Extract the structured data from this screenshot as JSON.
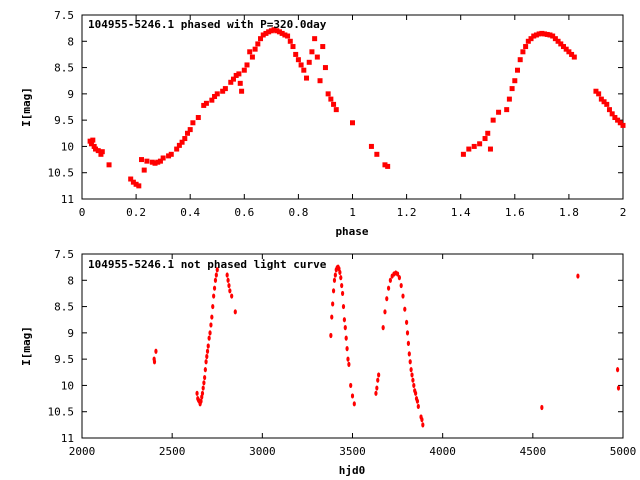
{
  "chart_data": [
    {
      "type": "scatter",
      "title": "104955-5246.1 phased with P=320.0day",
      "xlabel": "phase",
      "ylabel": "I[mag]",
      "xlim": [
        0,
        2
      ],
      "ylim": [
        7.5,
        11
      ],
      "y_inverted": true,
      "grid": false,
      "legend": "none",
      "x_ticks": [
        "0",
        "0.2",
        "0.4",
        "0.6",
        "0.8",
        "1",
        "1.2",
        "1.4",
        "1.6",
        "1.8",
        "2"
      ],
      "x_tick_values": [
        0,
        0.2,
        0.4,
        0.6,
        0.8,
        1.0,
        1.2,
        1.4,
        1.6,
        1.8,
        2.0
      ],
      "y_ticks": [
        "7.5",
        "8",
        "8.5",
        "9",
        "9.5",
        "10",
        "10.5",
        "11"
      ],
      "y_tick_values": [
        7.5,
        8,
        8.5,
        9,
        9.5,
        10,
        10.5,
        11
      ],
      "color": "#ff0000",
      "points": [
        [
          0.03,
          9.9
        ],
        [
          0.035,
          9.95
        ],
        [
          0.04,
          9.88
        ],
        [
          0.045,
          10.0
        ],
        [
          0.05,
          10.05
        ],
        [
          0.06,
          10.08
        ],
        [
          0.07,
          10.15
        ],
        [
          0.075,
          10.1
        ],
        [
          0.1,
          10.35
        ],
        [
          0.18,
          10.62
        ],
        [
          0.19,
          10.68
        ],
        [
          0.2,
          10.72
        ],
        [
          0.21,
          10.75
        ],
        [
          0.22,
          10.25
        ],
        [
          0.23,
          10.45
        ],
        [
          0.24,
          10.28
        ],
        [
          0.26,
          10.3
        ],
        [
          0.27,
          10.32
        ],
        [
          0.28,
          10.3
        ],
        [
          0.29,
          10.28
        ],
        [
          0.3,
          10.22
        ],
        [
          0.32,
          10.18
        ],
        [
          0.33,
          10.15
        ],
        [
          0.35,
          10.05
        ],
        [
          0.36,
          9.98
        ],
        [
          0.37,
          9.92
        ],
        [
          0.38,
          9.85
        ],
        [
          0.39,
          9.75
        ],
        [
          0.4,
          9.68
        ],
        [
          0.41,
          9.55
        ],
        [
          0.43,
          9.45
        ],
        [
          0.45,
          9.22
        ],
        [
          0.46,
          9.18
        ],
        [
          0.48,
          9.12
        ],
        [
          0.49,
          9.05
        ],
        [
          0.5,
          9.0
        ],
        [
          0.52,
          8.95
        ],
        [
          0.53,
          8.9
        ],
        [
          0.55,
          8.78
        ],
        [
          0.56,
          8.72
        ],
        [
          0.57,
          8.65
        ],
        [
          0.58,
          8.62
        ],
        [
          0.585,
          8.8
        ],
        [
          0.59,
          8.95
        ],
        [
          0.6,
          8.55
        ],
        [
          0.61,
          8.45
        ],
        [
          0.62,
          8.2
        ],
        [
          0.63,
          8.3
        ],
        [
          0.64,
          8.15
        ],
        [
          0.65,
          8.05
        ],
        [
          0.66,
          7.95
        ],
        [
          0.67,
          7.88
        ],
        [
          0.68,
          7.85
        ],
        [
          0.69,
          7.82
        ],
        [
          0.7,
          7.8
        ],
        [
          0.71,
          7.78
        ],
        [
          0.72,
          7.8
        ],
        [
          0.73,
          7.82
        ],
        [
          0.74,
          7.85
        ],
        [
          0.75,
          7.88
        ],
        [
          0.76,
          7.9
        ],
        [
          0.77,
          8.0
        ],
        [
          0.78,
          8.1
        ],
        [
          0.79,
          8.25
        ],
        [
          0.8,
          8.35
        ],
        [
          0.81,
          8.45
        ],
        [
          0.82,
          8.55
        ],
        [
          0.83,
          8.7
        ],
        [
          0.84,
          8.4
        ],
        [
          0.85,
          8.2
        ],
        [
          0.86,
          7.95
        ],
        [
          0.87,
          8.3
        ],
        [
          0.88,
          8.75
        ],
        [
          0.89,
          8.1
        ],
        [
          0.9,
          8.5
        ],
        [
          0.91,
          9.0
        ],
        [
          0.92,
          9.1
        ],
        [
          0.93,
          9.2
        ],
        [
          0.94,
          9.3
        ],
        [
          1.0,
          9.55
        ],
        [
          1.07,
          10.0
        ],
        [
          1.09,
          10.15
        ],
        [
          1.12,
          10.35
        ],
        [
          1.13,
          10.38
        ],
        [
          1.41,
          10.15
        ],
        [
          1.43,
          10.05
        ],
        [
          1.45,
          10.0
        ],
        [
          1.47,
          9.95
        ],
        [
          1.49,
          9.85
        ],
        [
          1.5,
          9.75
        ],
        [
          1.51,
          10.05
        ],
        [
          1.52,
          9.5
        ],
        [
          1.54,
          9.35
        ],
        [
          1.57,
          9.3
        ],
        [
          1.58,
          9.1
        ],
        [
          1.59,
          8.9
        ],
        [
          1.6,
          8.75
        ],
        [
          1.61,
          8.55
        ],
        [
          1.62,
          8.35
        ],
        [
          1.63,
          8.2
        ],
        [
          1.64,
          8.1
        ],
        [
          1.65,
          8.0
        ],
        [
          1.66,
          7.95
        ],
        [
          1.67,
          7.9
        ],
        [
          1.68,
          7.88
        ],
        [
          1.69,
          7.86
        ],
        [
          1.7,
          7.85
        ],
        [
          1.71,
          7.86
        ],
        [
          1.72,
          7.87
        ],
        [
          1.73,
          7.88
        ],
        [
          1.74,
          7.9
        ],
        [
          1.75,
          7.95
        ],
        [
          1.76,
          8.0
        ],
        [
          1.77,
          8.05
        ],
        [
          1.78,
          8.1
        ],
        [
          1.79,
          8.15
        ],
        [
          1.8,
          8.2
        ],
        [
          1.81,
          8.25
        ],
        [
          1.82,
          8.3
        ],
        [
          1.9,
          8.95
        ],
        [
          1.91,
          9.0
        ],
        [
          1.92,
          9.1
        ],
        [
          1.93,
          9.15
        ],
        [
          1.94,
          9.2
        ],
        [
          1.95,
          9.3
        ],
        [
          1.96,
          9.38
        ],
        [
          1.97,
          9.45
        ],
        [
          1.98,
          9.5
        ],
        [
          1.99,
          9.55
        ],
        [
          2.0,
          9.6
        ]
      ]
    },
    {
      "type": "scatter",
      "title": "104955-5246.1 not phased light curve",
      "xlabel": "hjd0",
      "ylabel": "I[mag]",
      "xlim": [
        2000,
        5000
      ],
      "ylim": [
        7.5,
        11
      ],
      "y_inverted": true,
      "grid": false,
      "legend": "none",
      "x_ticks": [
        "2000",
        "2500",
        "3000",
        "3500",
        "4000",
        "4500",
        "5000"
      ],
      "x_tick_values": [
        2000,
        2500,
        3000,
        3500,
        4000,
        4500,
        5000
      ],
      "y_ticks": [
        "7.5",
        "8",
        "8.5",
        "9",
        "9.5",
        "10",
        "10.5",
        "11"
      ],
      "y_tick_values": [
        7.5,
        8,
        8.5,
        9,
        9.5,
        10,
        10.5,
        11
      ],
      "color": "#ff0000",
      "points": [
        [
          2400,
          9.5
        ],
        [
          2402,
          9.55
        ],
        [
          2410,
          9.35
        ],
        [
          2638,
          10.15
        ],
        [
          2642,
          10.25
        ],
        [
          2646,
          10.28
        ],
        [
          2650,
          10.3
        ],
        [
          2655,
          10.35
        ],
        [
          2660,
          10.3
        ],
        [
          2664,
          10.22
        ],
        [
          2668,
          10.15
        ],
        [
          2672,
          10.05
        ],
        [
          2676,
          9.95
        ],
        [
          2680,
          9.85
        ],
        [
          2684,
          9.7
        ],
        [
          2688,
          9.55
        ],
        [
          2692,
          9.45
        ],
        [
          2696,
          9.35
        ],
        [
          2700,
          9.25
        ],
        [
          2705,
          9.1
        ],
        [
          2710,
          9.0
        ],
        [
          2715,
          8.85
        ],
        [
          2720,
          8.7
        ],
        [
          2725,
          8.5
        ],
        [
          2730,
          8.3
        ],
        [
          2735,
          8.15
        ],
        [
          2740,
          8.0
        ],
        [
          2745,
          7.9
        ],
        [
          2750,
          7.8
        ],
        [
          2805,
          7.9
        ],
        [
          2810,
          8.0
        ],
        [
          2815,
          8.1
        ],
        [
          2820,
          8.2
        ],
        [
          2830,
          8.3
        ],
        [
          2850,
          8.6
        ],
        [
          3380,
          9.05
        ],
        [
          3385,
          8.7
        ],
        [
          3390,
          8.45
        ],
        [
          3395,
          8.2
        ],
        [
          3400,
          8.0
        ],
        [
          3405,
          7.9
        ],
        [
          3410,
          7.8
        ],
        [
          3415,
          7.76
        ],
        [
          3420,
          7.75
        ],
        [
          3425,
          7.78
        ],
        [
          3430,
          7.85
        ],
        [
          3435,
          7.95
        ],
        [
          3440,
          8.1
        ],
        [
          3445,
          8.25
        ],
        [
          3450,
          8.5
        ],
        [
          3455,
          8.75
        ],
        [
          3460,
          8.9
        ],
        [
          3465,
          9.1
        ],
        [
          3470,
          9.3
        ],
        [
          3475,
          9.5
        ],
        [
          3480,
          9.6
        ],
        [
          3490,
          10.0
        ],
        [
          3500,
          10.2
        ],
        [
          3510,
          10.35
        ],
        [
          3630,
          10.15
        ],
        [
          3635,
          10.05
        ],
        [
          3640,
          9.9
        ],
        [
          3645,
          9.8
        ],
        [
          3670,
          8.9
        ],
        [
          3680,
          8.6
        ],
        [
          3690,
          8.35
        ],
        [
          3700,
          8.15
        ],
        [
          3710,
          8.0
        ],
        [
          3720,
          7.92
        ],
        [
          3730,
          7.88
        ],
        [
          3740,
          7.86
        ],
        [
          3750,
          7.88
        ],
        [
          3760,
          7.95
        ],
        [
          3770,
          8.1
        ],
        [
          3780,
          8.3
        ],
        [
          3790,
          8.55
        ],
        [
          3800,
          8.8
        ],
        [
          3805,
          9.0
        ],
        [
          3810,
          9.2
        ],
        [
          3815,
          9.4
        ],
        [
          3820,
          9.55
        ],
        [
          3825,
          9.7
        ],
        [
          3830,
          9.8
        ],
        [
          3835,
          9.9
        ],
        [
          3840,
          10.0
        ],
        [
          3845,
          10.1
        ],
        [
          3850,
          10.15
        ],
        [
          3855,
          10.25
        ],
        [
          3860,
          10.3
        ],
        [
          3865,
          10.4
        ],
        [
          3880,
          10.6
        ],
        [
          3885,
          10.65
        ],
        [
          3890,
          10.75
        ],
        [
          4550,
          10.42
        ],
        [
          4750,
          7.92
        ],
        [
          4970,
          9.7
        ],
        [
          4975,
          10.05
        ]
      ]
    }
  ]
}
